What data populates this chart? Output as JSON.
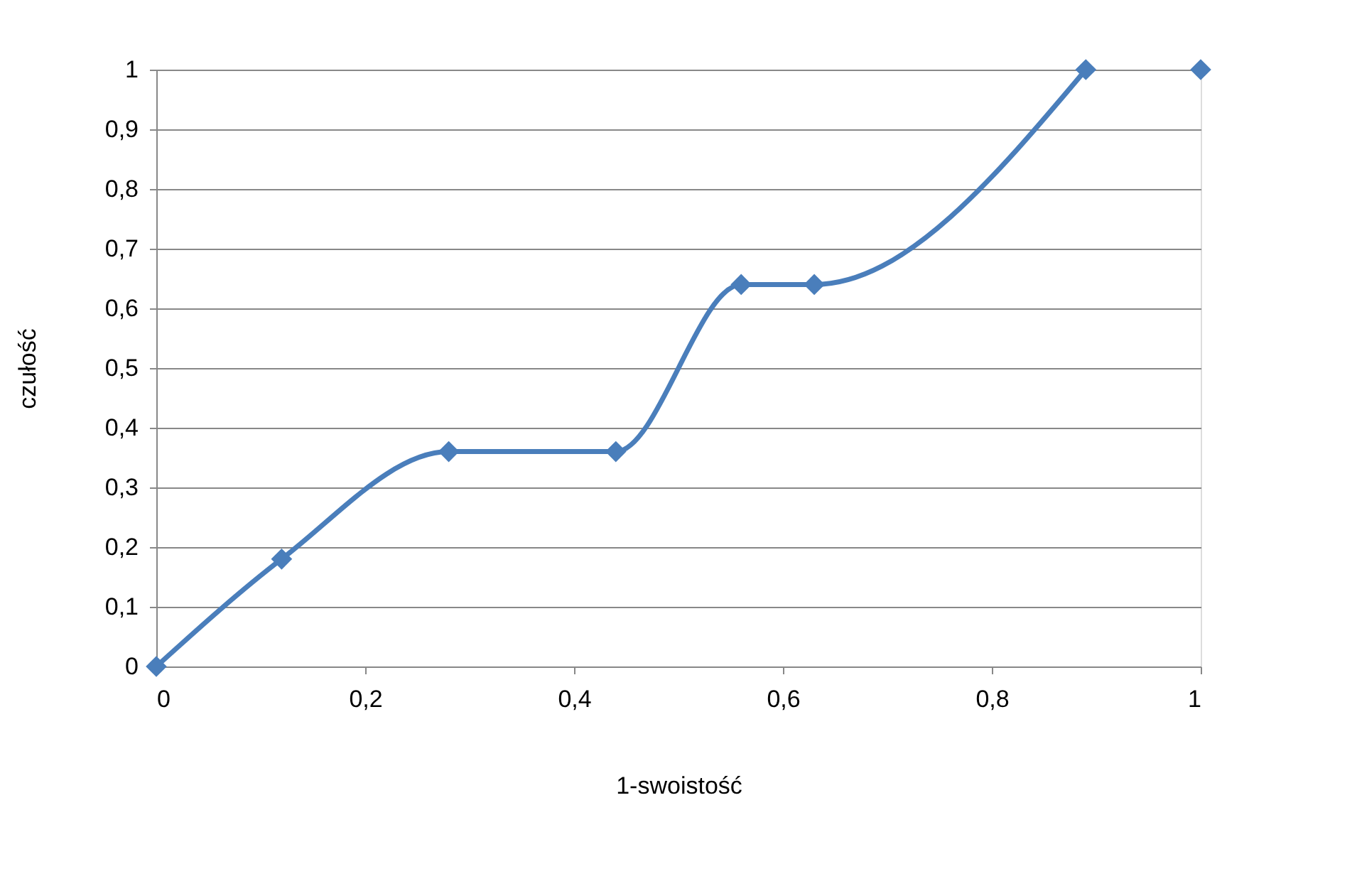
{
  "chart_data": {
    "type": "line",
    "xlabel": "1-swoistość",
    "ylabel": "czułość",
    "series": [
      {
        "color": "#4a7ebb",
        "x": [
          0,
          0.12,
          0.28,
          0.44,
          0.56,
          0.63,
          0.89
        ],
        "values": [
          0,
          0.18,
          0.36,
          0.36,
          0.64,
          0.64,
          1
        ]
      },
      {
        "type": "scatter",
        "color": "#4a7ebb",
        "x": [
          1
        ],
        "values": [
          1
        ]
      }
    ],
    "xlim": [
      0,
      1
    ],
    "xticks": [
      0,
      {
        "value": 0.2,
        "label": "0,2"
      },
      {
        "value": 0.4,
        "label": "0,4"
      },
      {
        "value": 0.6,
        "label": "0,6"
      },
      {
        "value": 0.8,
        "label": "0,8"
      },
      1
    ],
    "ylim": [
      0,
      1
    ],
    "yticks": [
      0,
      {
        "value": 0.1,
        "label": "0,1"
      },
      {
        "value": 0.2,
        "label": "0,2"
      },
      {
        "value": 0.3,
        "label": "0,3"
      },
      {
        "value": 0.4,
        "label": "0,4"
      },
      {
        "value": 0.5,
        "label": "0,5"
      },
      {
        "value": 0.6,
        "label": "0,6"
      },
      {
        "value": 0.7,
        "label": "0,7"
      },
      {
        "value": 0.8,
        "label": "0,8"
      },
      {
        "value": 0.9,
        "label": "0,9"
      },
      1
    ],
    "grid": "y",
    "marker": "diamond",
    "line_style": "solid"
  }
}
